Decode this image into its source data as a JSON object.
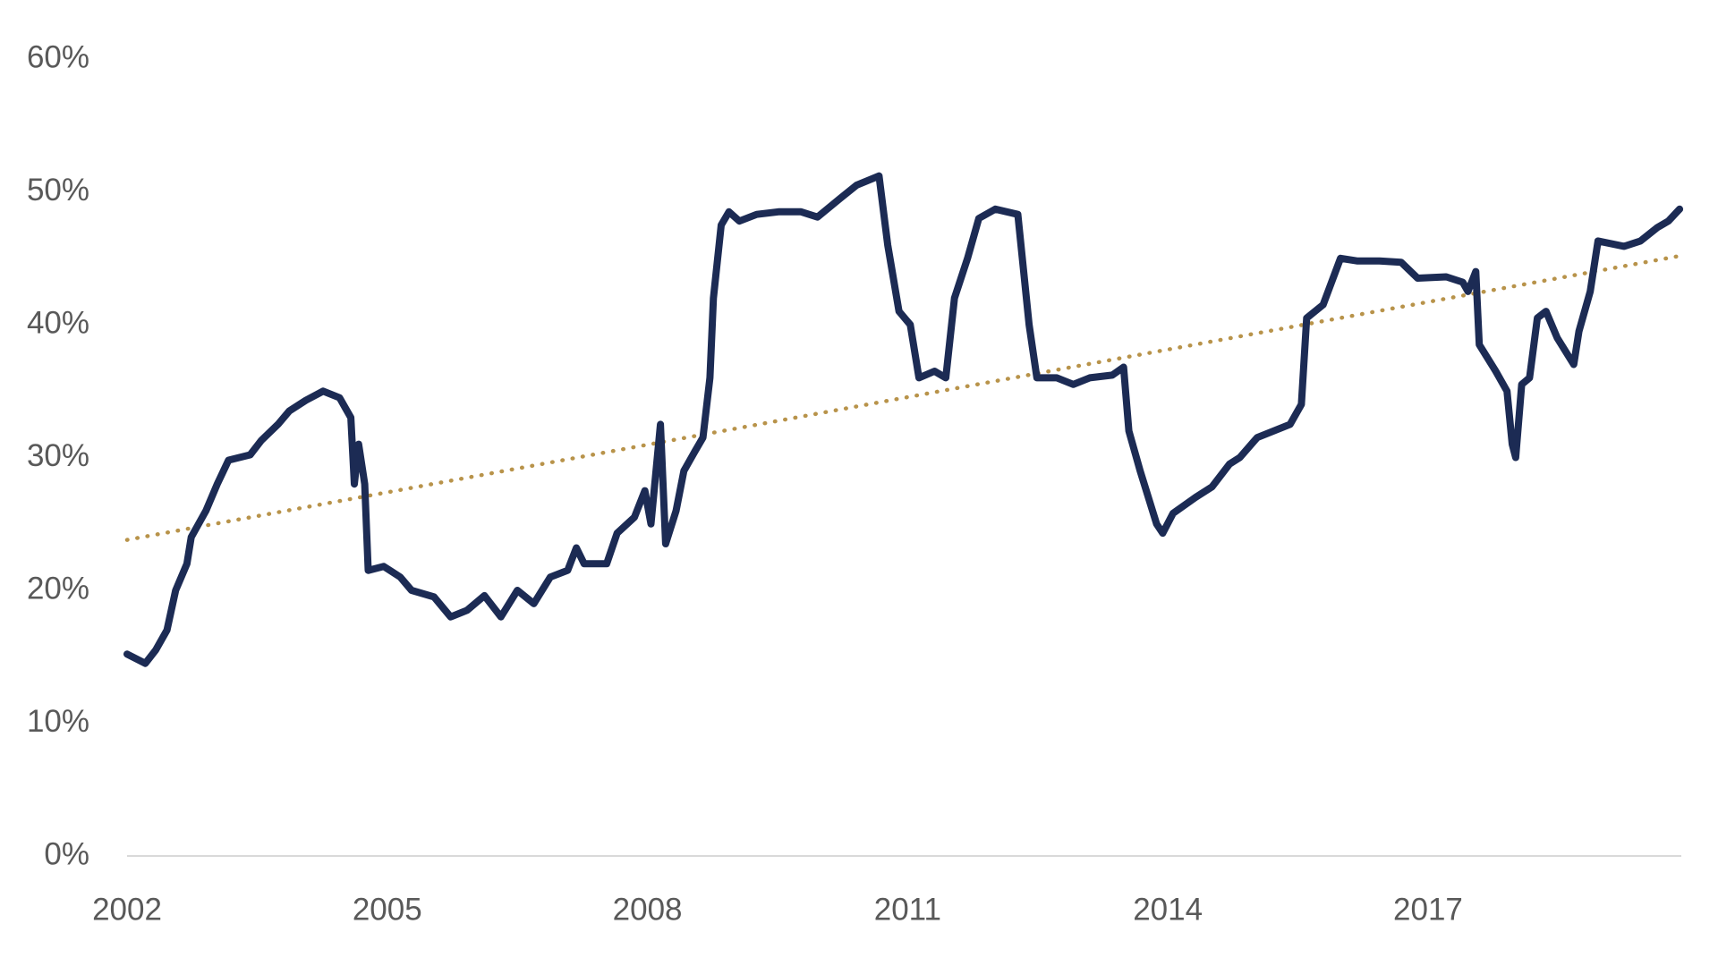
{
  "chart_data": {
    "type": "line",
    "x": [
      2002.0,
      2002.21,
      2002.33,
      2002.46,
      2002.56,
      2002.69,
      2002.74,
      2002.91,
      2003.04,
      2003.17,
      2003.42,
      2003.55,
      2003.74,
      2003.87,
      2004.06,
      2004.26,
      2004.45,
      2004.58,
      2004.62,
      2004.67,
      2004.74,
      2004.78,
      2004.96,
      2005.15,
      2005.28,
      2005.54,
      2005.73,
      2005.92,
      2006.12,
      2006.31,
      2006.5,
      2006.69,
      2006.88,
      2007.08,
      2007.18,
      2007.27,
      2007.53,
      2007.65,
      2007.85,
      2007.97,
      2008.04,
      2008.15,
      2008.21,
      2008.33,
      2008.42,
      2008.55,
      2008.64,
      2008.72,
      2008.76,
      2008.85,
      2008.94,
      2009.06,
      2009.26,
      2009.51,
      2009.77,
      2009.96,
      2010.22,
      2010.41,
      2010.67,
      2010.77,
      2010.9,
      2011.03,
      2011.13,
      2011.31,
      2011.44,
      2011.54,
      2011.69,
      2011.82,
      2012.01,
      2012.27,
      2012.4,
      2012.49,
      2012.72,
      2012.91,
      2013.1,
      2013.36,
      2013.49,
      2013.55,
      2013.68,
      2013.87,
      2013.94,
      2014.06,
      2014.32,
      2014.51,
      2014.71,
      2014.83,
      2015.03,
      2015.22,
      2015.41,
      2015.54,
      2015.6,
      2015.79,
      2015.99,
      2016.18,
      2016.44,
      2016.69,
      2016.88,
      2017.21,
      2017.4,
      2017.46,
      2017.55,
      2017.59,
      2017.78,
      2017.91,
      2017.97,
      2018.01,
      2018.08,
      2018.17,
      2018.26,
      2018.36,
      2018.49,
      2018.68,
      2018.74,
      2018.87,
      2018.96,
      2019.26,
      2019.45,
      2019.64,
      2019.77,
      2019.9
    ],
    "series": [
      {
        "color": "#1c2b54",
        "values": [
          15.2,
          14.5,
          15.5,
          17,
          20,
          22,
          24,
          26,
          28,
          29.8,
          30.2,
          31.3,
          32.5,
          33.5,
          34.3,
          35,
          34.5,
          33,
          28,
          31,
          28,
          21.5,
          21.8,
          21,
          20,
          19.5,
          18,
          18.5,
          19.6,
          18,
          20,
          19,
          21,
          21.5,
          23.2,
          22,
          22,
          24.3,
          25.5,
          27.5,
          25,
          32.5,
          23.5,
          26,
          29,
          30.5,
          31.5,
          36,
          42,
          47.5,
          48.5,
          47.8,
          48.3,
          48.5,
          48.5,
          48.1,
          49.5,
          50.5,
          51.2,
          46,
          41,
          40,
          36,
          36.5,
          36,
          42,
          45,
          48,
          48.7,
          48.3,
          40,
          36,
          36,
          35.5,
          36,
          36.2,
          36.8,
          32,
          29,
          25,
          24.3,
          25.8,
          27,
          27.8,
          29.5,
          30,
          31.5,
          32,
          32.5,
          34,
          40.5,
          41.5,
          45,
          44.8,
          44.8,
          44.7,
          43.5,
          43.6,
          43.2,
          42.5,
          44,
          38.5,
          36.5,
          35,
          31,
          30,
          35.5,
          36,
          40.5,
          41,
          39,
          37,
          39.5,
          42.5,
          46.3,
          45.9,
          46.3,
          47.3,
          47.8,
          48.7
        ]
      }
    ],
    "trendline": {
      "x": [
        2002,
        2019.92
      ],
      "values": [
        23.8,
        45.2
      ],
      "color": "#b8934a",
      "style": "dotted"
    },
    "xlim": [
      2002,
      2019.92
    ],
    "xticks": [
      2002,
      2005,
      2008,
      2011,
      2014,
      2017
    ],
    "ylim": [
      0,
      60
    ],
    "yticks": [
      {
        "value": 0,
        "label": "0%"
      },
      {
        "value": 10,
        "label": "10%"
      },
      {
        "value": 20,
        "label": "20%"
      },
      {
        "value": 30,
        "label": "30%"
      },
      {
        "value": 40,
        "label": "40%"
      },
      {
        "value": 50,
        "label": "50%"
      },
      {
        "value": 60,
        "label": "60%"
      }
    ],
    "grid": false
  }
}
